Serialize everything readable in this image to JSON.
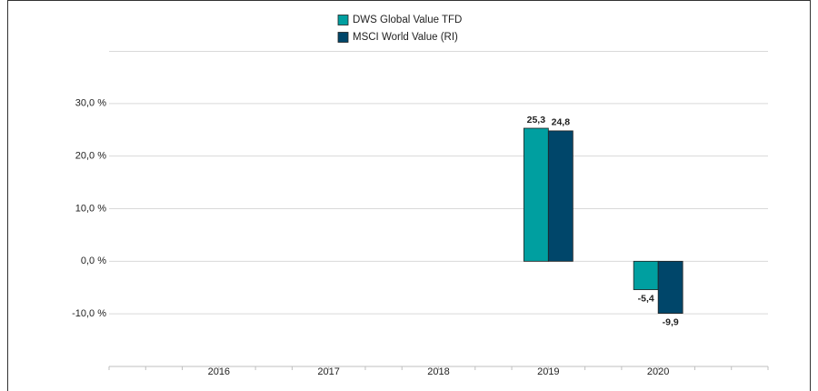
{
  "chart_data": {
    "type": "bar",
    "categories": [
      "2016",
      "2017",
      "2018",
      "2019",
      "2020"
    ],
    "series": [
      {
        "name": "DWS Global Value  TFD",
        "color": "#009fa0",
        "values": [
          null,
          null,
          null,
          25.3,
          -5.4
        ],
        "value_labels": [
          null,
          null,
          null,
          "25,3",
          "-5,4"
        ]
      },
      {
        "name": "MSCI World Value (RI)",
        "color": "#00466a",
        "values": [
          null,
          null,
          null,
          24.8,
          -9.9
        ],
        "value_labels": [
          null,
          null,
          null,
          "24,8",
          "-9,9"
        ]
      }
    ],
    "ylim": [
      -20,
      40
    ],
    "yticks": [
      {
        "value": -10,
        "label": "-10,0 %"
      },
      {
        "value": 0,
        "label": "0,0 %"
      },
      {
        "value": 10,
        "label": "10,0 %"
      },
      {
        "value": 20,
        "label": "20,0 %"
      },
      {
        "value": 30,
        "label": "30,0 %"
      }
    ],
    "grid": true
  }
}
